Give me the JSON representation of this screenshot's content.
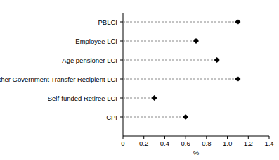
{
  "chart_data": {
    "type": "dot",
    "orientation": "horizontal",
    "categories": [
      "PBLCI",
      "Employee LCI",
      "Age pensioner LCI",
      "Other Government Transfer Recipient LCI",
      "Self-funded Retiree LCI",
      "CPI"
    ],
    "values": [
      1.1,
      0.7,
      0.9,
      1.1,
      0.3,
      0.6
    ],
    "color": "#000000",
    "marker": "diamond",
    "line_style": "dashed",
    "x_label": "%",
    "xlim": [
      0,
      1.4
    ],
    "xticks": [
      0,
      0.2,
      0.4,
      0.6,
      0.8,
      {
        "value": 1,
        "label": "1.0"
      },
      1.2,
      1.4
    ],
    "grid": false
  }
}
